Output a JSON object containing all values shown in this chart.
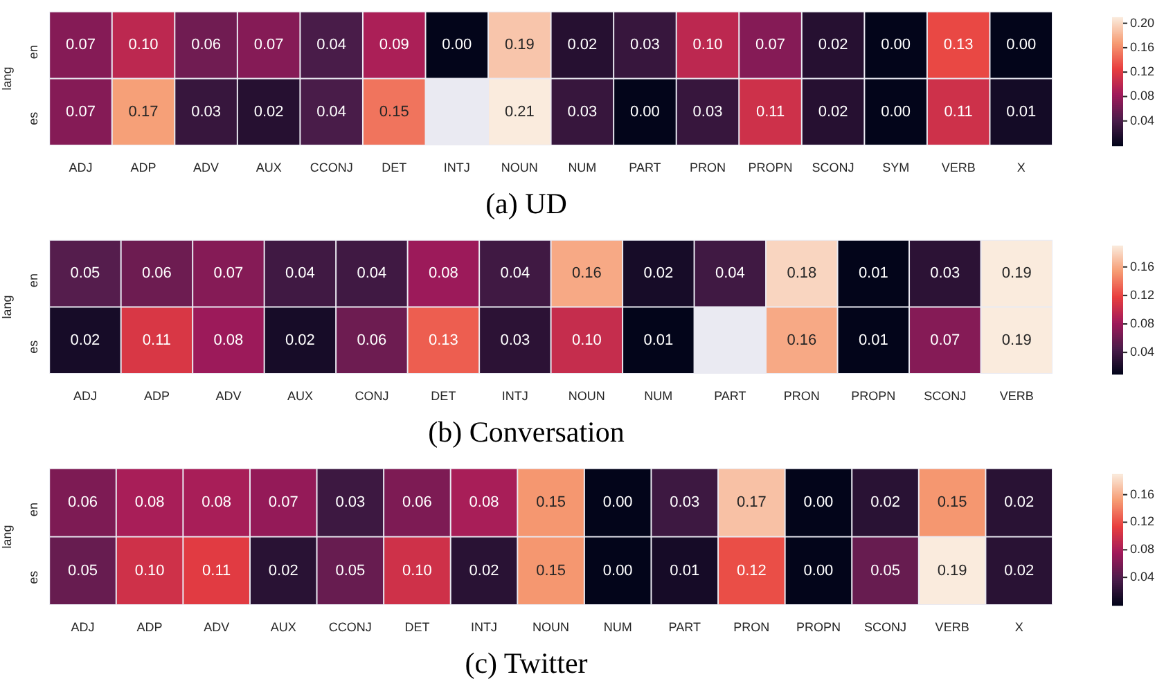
{
  "chart_data": [
    {
      "type": "heatmap",
      "title": "(a) UD",
      "ylabel": "lang",
      "categories": [
        "ADJ",
        "ADP",
        "ADV",
        "AUX",
        "CCONJ",
        "DET",
        "INTJ",
        "NOUN",
        "NUM",
        "PART",
        "PRON",
        "PROPN",
        "SCONJ",
        "SYM",
        "VERB",
        "X"
      ],
      "y_categories": [
        "en",
        "es"
      ],
      "cells": [
        [
          0.07,
          0.1,
          0.06,
          0.07,
          0.04,
          0.09,
          0.0,
          0.19,
          0.02,
          0.03,
          0.1,
          0.07,
          0.02,
          0.0,
          0.13,
          0.0
        ],
        [
          0.07,
          0.17,
          0.03,
          0.02,
          0.04,
          0.15,
          null,
          0.21,
          0.03,
          0.0,
          0.03,
          0.11,
          0.02,
          0.0,
          0.11,
          0.01
        ]
      ],
      "cell_labels": [
        [
          "0.07",
          "0.10",
          "0.06",
          "0.07",
          "0.04",
          "0.09",
          "0.00",
          "0.19",
          "0.02",
          "0.03",
          "0.10",
          "0.07",
          "0.02",
          "0.00",
          "0.13",
          "0.00"
        ],
        [
          "0.07",
          "0.17",
          "0.03",
          "0.02",
          "0.04",
          "0.15",
          null,
          "0.21",
          "0.03",
          "0.00",
          "0.03",
          "0.11",
          "0.02",
          "0.00",
          "0.11",
          "0.01"
        ]
      ],
      "clim": [
        0,
        0.21
      ],
      "cticks": [
        {
          "value": 0.04,
          "label": "0.04"
        },
        {
          "value": 0.08,
          "label": "0.08"
        },
        {
          "value": 0.12,
          "label": "0.12"
        },
        {
          "value": 0.16,
          "label": "0.16"
        },
        {
          "value": 0.2,
          "label": "0.20"
        }
      ],
      "data_labels": true
    },
    {
      "type": "heatmap",
      "title": "(b) Conversation",
      "ylabel": "lang",
      "categories": [
        "ADJ",
        "ADP",
        "ADV",
        "AUX",
        "CONJ",
        "DET",
        "INTJ",
        "NOUN",
        "NUM",
        "PART",
        "PRON",
        "PROPN",
        "SCONJ",
        "VERB"
      ],
      "y_categories": [
        "en",
        "es"
      ],
      "cells": [
        [
          0.05,
          0.06,
          0.07,
          0.04,
          0.04,
          0.08,
          0.04,
          0.16,
          0.02,
          0.04,
          0.18,
          0.01,
          0.03,
          0.19
        ],
        [
          0.02,
          0.11,
          0.08,
          0.02,
          0.06,
          0.13,
          0.03,
          0.1,
          0.01,
          null,
          0.16,
          0.01,
          0.07,
          0.19
        ]
      ],
      "cell_labels": [
        [
          "0.05",
          "0.06",
          "0.07",
          "0.04",
          "0.04",
          "0.08",
          "0.04",
          "0.16",
          "0.02",
          "0.04",
          "0.18",
          "0.01",
          "0.03",
          "0.19"
        ],
        [
          "0.02",
          "0.11",
          "0.08",
          "0.02",
          "0.06",
          "0.13",
          "0.03",
          "0.10",
          "0.01",
          null,
          "0.16",
          "0.01",
          "0.07",
          "0.19"
        ]
      ],
      "clim": [
        0.01,
        0.19
      ],
      "cticks": [
        {
          "value": 0.04,
          "label": "0.04"
        },
        {
          "value": 0.08,
          "label": "0.08"
        },
        {
          "value": 0.12,
          "label": "0.12"
        },
        {
          "value": 0.16,
          "label": "0.16"
        }
      ],
      "data_labels": true
    },
    {
      "type": "heatmap",
      "title": "(c) Twitter",
      "ylabel": "lang",
      "categories": [
        "ADJ",
        "ADP",
        "ADV",
        "AUX",
        "CCONJ",
        "DET",
        "INTJ",
        "NOUN",
        "NUM",
        "PART",
        "PRON",
        "PROPN",
        "SCONJ",
        "VERB",
        "X"
      ],
      "y_categories": [
        "en",
        "es"
      ],
      "cells": [
        [
          0.06,
          0.08,
          0.08,
          0.07,
          0.03,
          0.06,
          0.08,
          0.15,
          0.0,
          0.03,
          0.17,
          0.0,
          0.02,
          0.15,
          0.02
        ],
        [
          0.05,
          0.1,
          0.11,
          0.02,
          0.05,
          0.1,
          0.02,
          0.15,
          0.0,
          0.01,
          0.12,
          0.0,
          0.05,
          0.19,
          0.02
        ]
      ],
      "cell_labels": [
        [
          "0.06",
          "0.08",
          "0.08",
          "0.07",
          "0.03",
          "0.06",
          "0.08",
          "0.15",
          "0.00",
          "0.03",
          "0.17",
          "0.00",
          "0.02",
          "0.15",
          "0.02"
        ],
        [
          "0.05",
          "0.10",
          "0.11",
          "0.02",
          "0.05",
          "0.10",
          "0.02",
          "0.15",
          "0.00",
          "0.01",
          "0.12",
          "0.00",
          "0.05",
          "0.19",
          "0.02"
        ]
      ],
      "clim": [
        0,
        0.19
      ],
      "cticks": [
        {
          "value": 0.04,
          "label": "0.04"
        },
        {
          "value": 0.08,
          "label": "0.08"
        },
        {
          "value": 0.12,
          "label": "0.12"
        },
        {
          "value": 0.16,
          "label": "0.16"
        }
      ],
      "data_labels": true
    }
  ]
}
